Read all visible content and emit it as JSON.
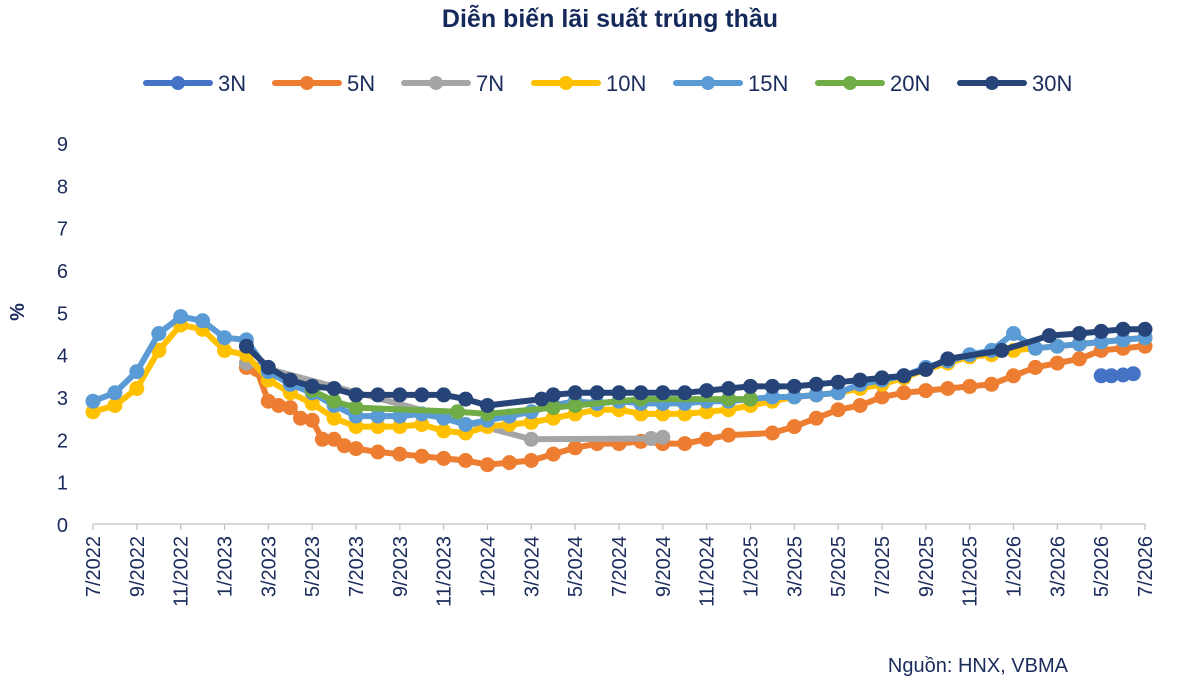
{
  "chart_data": {
    "type": "line",
    "title": "Diễn biến lãi suất trúng thầu",
    "ylabel": "%",
    "xlabel": "",
    "ylim": [
      0,
      9
    ],
    "yticks": [
      0,
      1,
      2,
      3,
      4,
      5,
      6,
      7,
      8,
      9
    ],
    "xlim": [
      "2022-07",
      "2026-07"
    ],
    "xticks": [
      "7/2022",
      "9/2022",
      "11/2022",
      "1/2023",
      "3/2023",
      "5/2023",
      "7/2023",
      "9/2023",
      "11/2023",
      "1/2024",
      "3/2024",
      "5/2024",
      "7/2024",
      "9/2024",
      "11/2024",
      "1/2025",
      "3/2025",
      "5/2025",
      "7/2025",
      "9/2025",
      "11/2025",
      "1/2026",
      "3/2026",
      "5/2026",
      "7/2026"
    ],
    "grid": false,
    "legend_position": "top",
    "source": "Nguồn: HNX, VBMA",
    "series": [
      {
        "name": "3N",
        "color": "#4472c4",
        "x": [
          "2026-05",
          "2026-05-15",
          "2026-06",
          "2026-06-15"
        ],
        "y": [
          3.5,
          3.5,
          3.52,
          3.55
        ]
      },
      {
        "name": "5N",
        "color": "#ed7d31",
        "x": [
          "2023-02",
          "2023-02-15",
          "2023-03",
          "2023-03-15",
          "2023-04",
          "2023-04-15",
          "2023-05",
          "2023-05-15",
          "2023-06",
          "2023-06-15",
          "2023-07",
          "2023-08",
          "2023-09",
          "2023-10",
          "2023-11",
          "2023-12",
          "2024-01",
          "2024-02",
          "2024-03",
          "2024-04",
          "2024-05",
          "2024-06",
          "2024-07",
          "2024-08",
          "2024-09",
          "2024-10",
          "2024-11",
          "2024-12",
          "2025-02",
          "2025-03",
          "2025-04",
          "2025-05",
          "2025-06",
          "2025-07",
          "2025-08",
          "2025-09",
          "2025-10",
          "2025-11",
          "2025-12",
          "2026-01",
          "2026-02",
          "2026-03",
          "2026-04",
          "2026-05",
          "2026-06",
          "2026-07"
        ],
        "y": [
          3.7,
          3.65,
          2.9,
          2.8,
          2.75,
          2.5,
          2.45,
          2.0,
          2.0,
          1.85,
          1.78,
          1.7,
          1.65,
          1.6,
          1.55,
          1.5,
          1.4,
          1.45,
          1.5,
          1.65,
          1.8,
          1.9,
          1.9,
          1.95,
          1.9,
          1.9,
          2.0,
          2.1,
          2.15,
          2.3,
          2.5,
          2.7,
          2.8,
          3.0,
          3.1,
          3.15,
          3.2,
          3.25,
          3.3,
          3.5,
          3.7,
          3.8,
          3.9,
          4.1,
          4.15,
          4.2
        ]
      },
      {
        "name": "7N",
        "color": "#a5a5a5",
        "x": [
          "2023-02",
          "2024-03",
          "2024-08-15",
          "2024-09"
        ],
        "y": [
          3.8,
          2.0,
          2.02,
          2.05
        ]
      },
      {
        "name": "10N",
        "color": "#ffc000",
        "x": [
          "2022-07",
          "2022-08",
          "2022-09",
          "2022-10",
          "2022-11",
          "2022-12",
          "2023-01",
          "2023-02",
          "2023-03",
          "2023-04",
          "2023-05",
          "2023-06",
          "2023-07",
          "2023-08",
          "2023-09",
          "2023-10",
          "2023-11",
          "2023-12",
          "2024-01",
          "2024-02",
          "2024-03",
          "2024-04",
          "2024-05",
          "2024-06",
          "2024-07",
          "2024-08",
          "2024-09",
          "2024-10",
          "2024-11",
          "2024-12",
          "2025-01",
          "2025-02",
          "2025-03",
          "2025-04",
          "2025-05",
          "2025-06",
          "2025-07",
          "2025-08",
          "2025-09",
          "2025-10",
          "2025-11",
          "2025-12",
          "2026-01",
          "2026-02",
          "2026-03",
          "2026-04",
          "2026-05",
          "2026-06",
          "2026-07"
        ],
        "y": [
          2.65,
          2.8,
          3.2,
          4.1,
          4.7,
          4.6,
          4.1,
          4.0,
          3.4,
          3.1,
          2.85,
          2.5,
          2.3,
          2.3,
          2.3,
          2.35,
          2.2,
          2.15,
          2.3,
          2.35,
          2.4,
          2.5,
          2.6,
          2.7,
          2.7,
          2.6,
          2.6,
          2.6,
          2.65,
          2.7,
          2.8,
          2.9,
          3.0,
          3.05,
          3.1,
          3.2,
          3.3,
          3.45,
          3.65,
          3.8,
          3.95,
          4.0,
          4.1,
          4.15,
          4.2,
          4.25,
          4.3,
          4.35,
          4.4
        ]
      },
      {
        "name": "15N",
        "color": "#5b9bd5",
        "x": [
          "2022-07",
          "2022-08",
          "2022-09",
          "2022-10",
          "2022-11",
          "2022-12",
          "2023-01",
          "2023-02",
          "2023-03",
          "2023-04",
          "2023-05",
          "2023-06",
          "2023-07",
          "2023-08",
          "2023-09",
          "2023-10",
          "2023-11",
          "2023-12",
          "2024-01",
          "2024-02",
          "2024-03",
          "2024-04",
          "2024-05",
          "2024-06",
          "2024-07",
          "2024-08",
          "2024-09",
          "2024-10",
          "2024-11",
          "2024-12",
          "2025-01",
          "2025-02",
          "2025-03",
          "2025-04",
          "2025-05",
          "2025-06",
          "2025-07",
          "2025-08",
          "2025-09",
          "2025-10",
          "2025-11",
          "2025-12",
          "2026-01",
          "2026-02",
          "2026-03",
          "2026-04",
          "2026-05",
          "2026-06",
          "2026-07"
        ],
        "y": [
          2.9,
          3.1,
          3.6,
          4.5,
          4.9,
          4.8,
          4.4,
          4.35,
          3.6,
          3.3,
          3.1,
          2.8,
          2.55,
          2.55,
          2.55,
          2.6,
          2.5,
          2.35,
          2.45,
          2.55,
          2.65,
          2.8,
          2.9,
          2.85,
          2.9,
          2.85,
          2.85,
          2.85,
          2.9,
          2.9,
          2.95,
          3.0,
          3.0,
          3.05,
          3.1,
          3.3,
          3.4,
          3.5,
          3.7,
          3.85,
          4.0,
          4.1,
          4.5,
          4.15,
          4.2,
          4.25,
          4.3,
          4.35,
          4.4
        ]
      },
      {
        "name": "20N",
        "color": "#70ad47",
        "x": [
          "2023-05",
          "2023-06",
          "2023-07",
          "2023-11-20",
          "2024-01",
          "2024-04",
          "2024-05",
          "2024-08",
          "2024-12",
          "2025-01"
        ],
        "y": [
          3.15,
          2.9,
          2.75,
          2.65,
          2.6,
          2.75,
          2.8,
          2.95,
          2.95,
          2.95
        ]
      },
      {
        "name": "30N",
        "color": "#264478",
        "x": [
          "2023-02",
          "2023-03",
          "2023-04",
          "2023-05",
          "2023-06",
          "2023-07",
          "2023-08",
          "2023-09",
          "2023-10",
          "2023-11",
          "2023-12",
          "2024-01",
          "2024-03-15",
          "2024-04",
          "2024-05",
          "2024-06",
          "2024-07",
          "2024-08",
          "2024-09",
          "2024-10",
          "2024-11",
          "2024-12",
          "2025-01",
          "2025-02",
          "2025-03",
          "2025-04",
          "2025-05",
          "2025-06",
          "2025-07",
          "2025-08",
          "2025-09",
          "2025-10",
          "2025-12-15",
          "2026-02-20",
          "2026-04",
          "2026-05",
          "2026-06",
          "2026-07"
        ],
        "y": [
          4.2,
          3.7,
          3.4,
          3.25,
          3.2,
          3.05,
          3.05,
          3.05,
          3.05,
          3.05,
          2.95,
          2.8,
          2.95,
          3.05,
          3.1,
          3.1,
          3.1,
          3.1,
          3.1,
          3.1,
          3.15,
          3.2,
          3.25,
          3.25,
          3.25,
          3.3,
          3.35,
          3.4,
          3.45,
          3.5,
          3.65,
          3.9,
          4.1,
          4.45,
          4.5,
          4.55,
          4.6,
          4.6
        ]
      }
    ]
  }
}
